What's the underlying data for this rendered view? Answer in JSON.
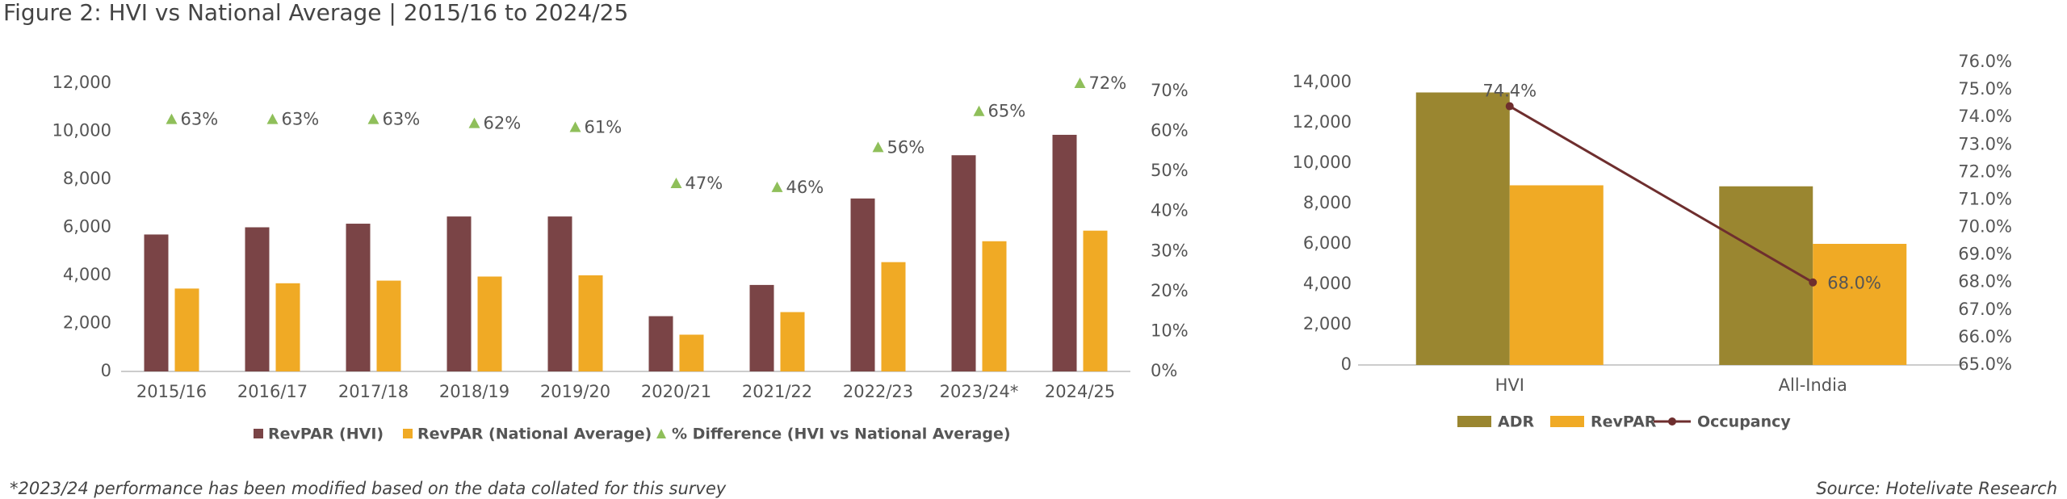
{
  "title": "Figure 2: HVI vs National Average | 2015/16 to 2024/25",
  "footnote": "*2023/24 performance has been modified based on the data collated for this survey",
  "source": "Source: Hotelivate Research",
  "chart_data": [
    {
      "type": "bar",
      "categories": [
        "2015/16",
        "2016/17",
        "2017/18",
        "2018/19",
        "2019/20",
        "2020/21",
        "2021/22",
        "2022/23",
        "2023/24*",
        "2024/25"
      ],
      "series": [
        {
          "name": "RevPAR (HVI)",
          "color": "#7a4446",
          "values": [
            5700,
            6000,
            6150,
            6450,
            6450,
            2300,
            3600,
            7200,
            9000,
            9850
          ]
        },
        {
          "name": "RevPAR (National Average)",
          "color": "#f0aa25",
          "values": [
            3450,
            3670,
            3780,
            3950,
            4000,
            1530,
            2470,
            4550,
            5420,
            5860
          ]
        },
        {
          "name": "% Difference (HVI vs National Average)",
          "color": "#8fbf5a",
          "type": "marker",
          "axis": "y2",
          "values": [
            63,
            63,
            63,
            62,
            61,
            47,
            46,
            56,
            65,
            72
          ],
          "value_labels": [
            "63%",
            "63%",
            "63%",
            "62%",
            "61%",
            "47%",
            "46%",
            "56%",
            "65%",
            "72%"
          ]
        }
      ],
      "ylim": [
        0,
        12000
      ],
      "yticks": [
        0,
        {
          "value": 2000,
          "label": "2,000"
        },
        {
          "value": 4000,
          "label": "4,000"
        },
        {
          "value": 6000,
          "label": "6,000"
        },
        {
          "value": 8000,
          "label": "8,000"
        },
        {
          "value": 10000,
          "label": "10,000"
        },
        {
          "value": 12000,
          "label": "12,000"
        }
      ],
      "y2lim": [
        0,
        72
      ],
      "y2ticks": [
        {
          "value": 0,
          "label": "0%"
        },
        {
          "value": 10,
          "label": "10%"
        },
        {
          "value": 20,
          "label": "20%"
        },
        {
          "value": 30,
          "label": "30%"
        },
        {
          "value": 40,
          "label": "40%"
        },
        {
          "value": 50,
          "label": "50%"
        },
        {
          "value": 60,
          "label": "60%"
        },
        {
          "value": 70,
          "label": "70%"
        }
      ],
      "grid": false
    },
    {
      "type": "bar",
      "categories": [
        "HVI",
        "All-India"
      ],
      "series": [
        {
          "name": "ADR",
          "color": "#9a8630",
          "values": [
            13500,
            8850
          ]
        },
        {
          "name": "RevPAR",
          "color": "#f0aa25",
          "values": [
            8900,
            6000
          ]
        },
        {
          "name": "Occupancy",
          "color": "#6e2e2e",
          "type": "line",
          "axis": "y2",
          "values": [
            74.4,
            68.0
          ],
          "value_labels": [
            "74.4%",
            "68.0%"
          ]
        }
      ],
      "ylim": [
        0,
        15000
      ],
      "yticks": [
        0,
        {
          "value": 2000,
          "label": "2,000"
        },
        {
          "value": 4000,
          "label": "4,000"
        },
        {
          "value": 6000,
          "label": "6,000"
        },
        {
          "value": 8000,
          "label": "8,000"
        },
        {
          "value": 10000,
          "label": "10,000"
        },
        {
          "value": 12000,
          "label": "12,000"
        },
        {
          "value": 14000,
          "label": "14,000"
        }
      ],
      "y2lim": [
        65,
        76
      ],
      "y2ticks": [
        {
          "value": 65,
          "label": "65.0%"
        },
        {
          "value": 66,
          "label": "66.0%"
        },
        {
          "value": 67,
          "label": "67.0%"
        },
        {
          "value": 68,
          "label": "68.0%"
        },
        {
          "value": 69,
          "label": "69.0%"
        },
        {
          "value": 70,
          "label": "70.0%"
        },
        {
          "value": 71,
          "label": "71.0%"
        },
        {
          "value": 72,
          "label": "72.0%"
        },
        {
          "value": 73,
          "label": "73.0%"
        },
        {
          "value": 74,
          "label": "74.0%"
        },
        {
          "value": 75,
          "label": "75.0%"
        },
        {
          "value": 76,
          "label": "76.0%"
        }
      ],
      "grid": false
    }
  ]
}
